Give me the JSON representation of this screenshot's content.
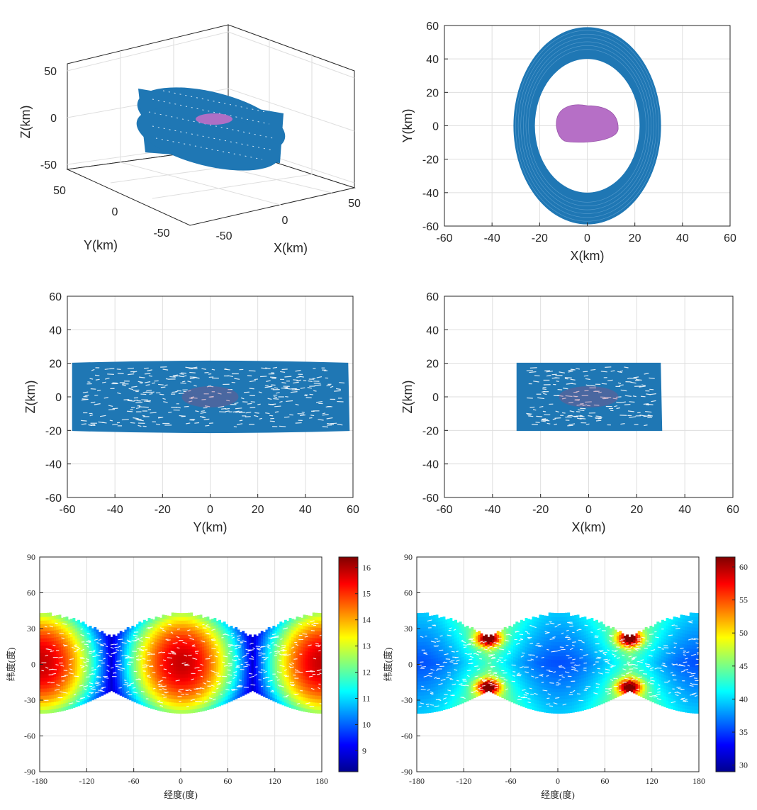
{
  "chart_data": [
    {
      "type": "scatter",
      "view": "3d",
      "xlabel": "X(km)",
      "ylabel": "Y(km)",
      "zlabel": "Z(km)",
      "xlim": [
        -60,
        60
      ],
      "ylim": [
        -60,
        60
      ],
      "zlim": [
        -60,
        60
      ],
      "xticks": [
        "-50",
        "0",
        "50"
      ],
      "yticks": [
        "-50",
        "0",
        "50"
      ],
      "zticks": [
        "-50",
        "0",
        "50"
      ],
      "grid": true,
      "series": [
        {
          "color": "#1f77b4",
          "shape": "band",
          "x_range": [
            -30,
            30
          ],
          "y_range": [
            -58,
            58
          ],
          "z_range": [
            -22,
            22
          ]
        },
        {
          "color": "#b66fc6",
          "shape": "body"
        }
      ]
    },
    {
      "type": "scatter",
      "view": "xy",
      "xlabel": "X(km)",
      "ylabel": "Y(km)",
      "xlim": [
        -60,
        60
      ],
      "ylim": [
        -60,
        60
      ],
      "xticks": [
        "-60",
        "-40",
        "-20",
        "0",
        "20",
        "40",
        "60"
      ],
      "yticks": [
        "60",
        "40",
        "20",
        "0",
        "-20",
        "-40",
        "-60"
      ],
      "grid": true,
      "series": [
        {
          "color": "#1f77b4",
          "shape": "ellipse_ring",
          "outer": [
            31,
            59
          ],
          "inner": [
            22,
            40
          ]
        },
        {
          "color": "#b66fc6",
          "shape": "body",
          "extent_x": [
            -13,
            13
          ],
          "extent_y": [
            -10,
            12
          ]
        }
      ]
    },
    {
      "type": "scatter",
      "view": "yz",
      "xlabel": "Y(km)",
      "ylabel": "Z(km)",
      "xlim": [
        -60,
        60
      ],
      "ylim": [
        -60,
        60
      ],
      "xticks": [
        "-60",
        "-40",
        "-20",
        "0",
        "20",
        "40",
        "60"
      ],
      "yticks": [
        "60",
        "40",
        "20",
        "0",
        "-20",
        "-40",
        "-60"
      ],
      "grid": true,
      "series": [
        {
          "color": "#1f77b4",
          "shape": "band",
          "x_range": [
            -58,
            58
          ],
          "z_range": [
            -22,
            22
          ]
        }
      ]
    },
    {
      "type": "scatter",
      "view": "xz",
      "xlabel": "X(km)",
      "ylabel": "Z(km)",
      "xlim": [
        -60,
        60
      ],
      "ylim": [
        -60,
        60
      ],
      "xticks": [
        "-60",
        "-40",
        "-20",
        "0",
        "20",
        "40",
        "60"
      ],
      "yticks": [
        "60",
        "40",
        "20",
        "0",
        "-20",
        "-40",
        "-60"
      ],
      "grid": true,
      "series": [
        {
          "color": "#1f77b4",
          "shape": "band",
          "x_range": [
            -30,
            30
          ],
          "z_range": [
            -22,
            22
          ]
        }
      ]
    },
    {
      "type": "heatmap",
      "xlabel": "经度(度)",
      "ylabel": "纬度(度)",
      "xlim": [
        -180,
        180
      ],
      "ylim": [
        -90,
        90
      ],
      "xticks": [
        "-180",
        "-120",
        "-60",
        "0",
        "60",
        "120",
        "180"
      ],
      "yticks": [
        "90",
        "60",
        "30",
        "0",
        "-30",
        "-60",
        "-90"
      ],
      "colorbar": {
        "min": 8.2,
        "max": 16.4,
        "ticks": [
          "16",
          "15",
          "14",
          "13",
          "12",
          "11",
          "10",
          "9"
        ],
        "colormap": "jet"
      },
      "ground_track": {
        "lat_max_deg": 41,
        "lat_min_deg": 22,
        "node_longitudes_deg": [
          -90,
          90
        ]
      },
      "value_pattern": "high near longitude 0 and ±180, low near ±90"
    },
    {
      "type": "heatmap",
      "xlabel": "经度(度)",
      "ylabel": "纬度(度)",
      "xlim": [
        -180,
        180
      ],
      "ylim": [
        -90,
        90
      ],
      "xticks": [
        "-180",
        "-120",
        "-60",
        "0",
        "60",
        "120",
        "180"
      ],
      "yticks": [
        "90",
        "60",
        "30",
        "0",
        "-30",
        "-60",
        "-90"
      ],
      "colorbar": {
        "min": 29,
        "max": 61.5,
        "ticks": [
          "60",
          "55",
          "50",
          "45",
          "40",
          "35",
          "30"
        ],
        "colormap": "jet"
      },
      "ground_track": {
        "lat_max_deg": 41,
        "lat_min_deg": 22,
        "node_longitudes_deg": [
          -90,
          90
        ]
      },
      "value_pattern": "low near longitude 0 and ±180, peaks (~60) near longitude ±90 at latitude ±20"
    }
  ]
}
